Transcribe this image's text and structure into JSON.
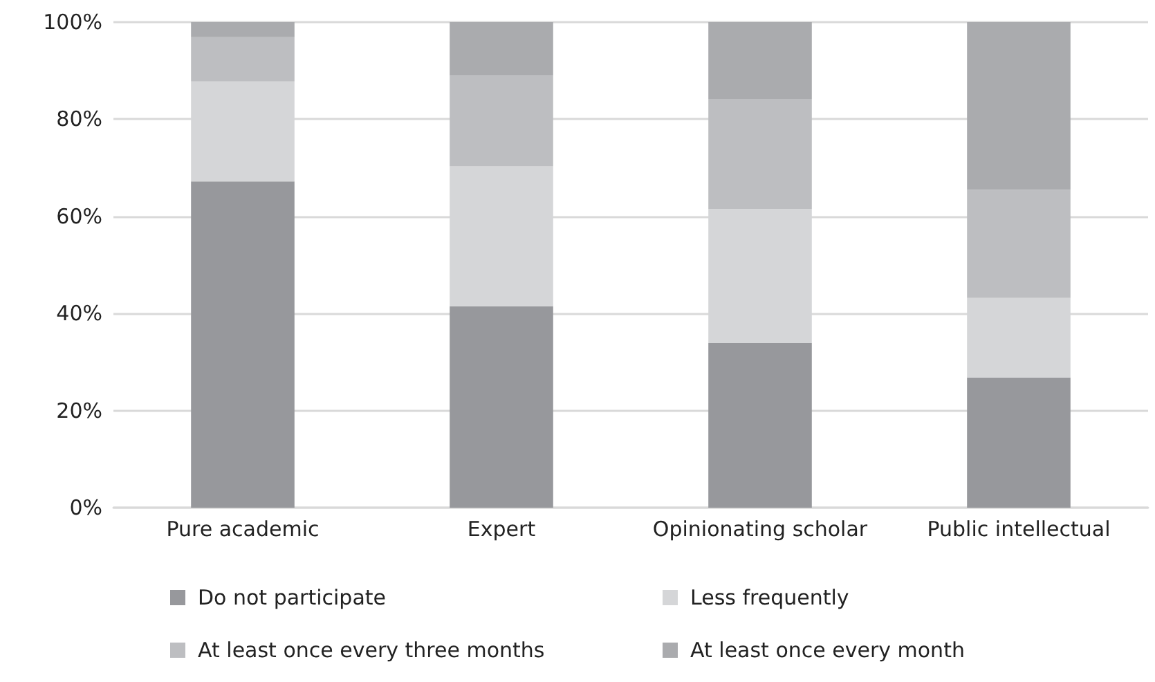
{
  "chart_data": {
    "type": "bar",
    "stacked": true,
    "categories": [
      "Pure academic",
      "Expert",
      "Opinionating scholar",
      "Public intellectual"
    ],
    "series": [
      {
        "name": "Do not participate",
        "color": "#97989c",
        "values": [
          67.2,
          41.5,
          33.9,
          26.8
        ]
      },
      {
        "name": "Less frequently",
        "color": "#d5d6d8",
        "values": [
          20.6,
          28.8,
          27.6,
          16.4
        ]
      },
      {
        "name": "At least once every three months",
        "color": "#bdbec1",
        "values": [
          9.1,
          18.7,
          22.7,
          22.3
        ]
      },
      {
        "name": "At least once every month",
        "color": "#aaabae",
        "values": [
          3.1,
          11.0,
          15.8,
          34.5
        ]
      }
    ],
    "ylim": [
      0,
      100
    ],
    "yticks": [
      {
        "value": 0,
        "label": "0%"
      },
      {
        "value": 20,
        "label": "20%"
      },
      {
        "value": 40,
        "label": "40%"
      },
      {
        "value": 60,
        "label": "60%"
      },
      {
        "value": 80,
        "label": "80%"
      },
      {
        "value": 100,
        "label": "100%"
      }
    ],
    "grid": "y",
    "legend": "bottom"
  }
}
